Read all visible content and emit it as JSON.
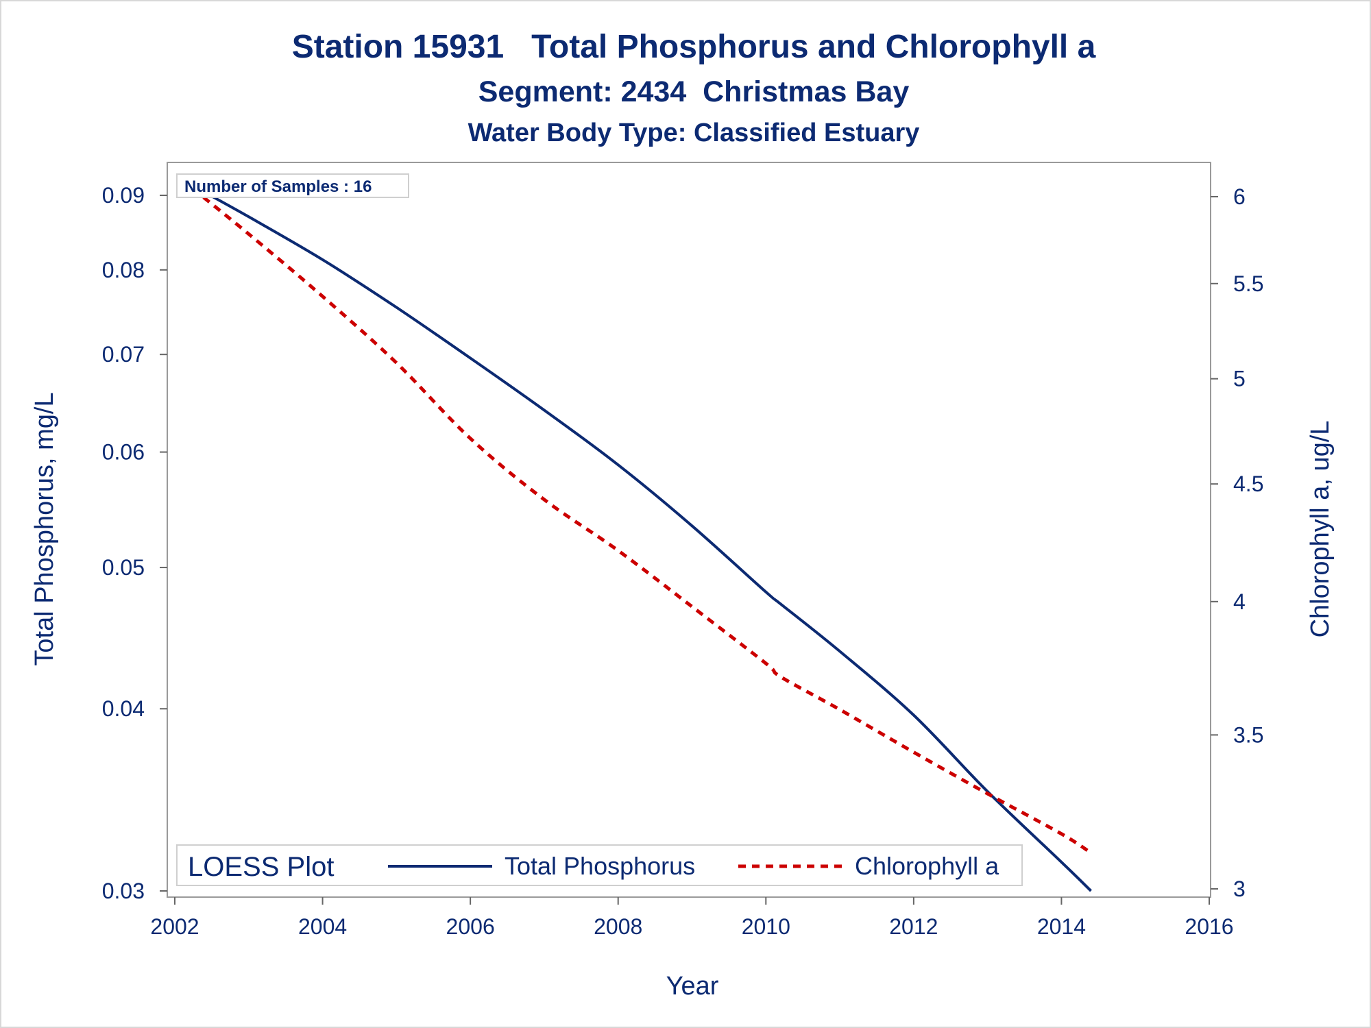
{
  "chart_data": {
    "type": "line",
    "title": "Station 15931   Total Phosphorus and Chlorophyll a",
    "subtitle": "Segment: 2434  Christmas Bay",
    "subtitle2": "Water Body Type: Classified Estuary",
    "xlabel": "Year",
    "ylabel": "Total Phosphorus, mg/L",
    "y2label": "Chlorophyll a, ug/L",
    "xlim": [
      2002,
      2016
    ],
    "ylim": [
      0.03,
      0.09
    ],
    "y2lim": [
      3,
      6
    ],
    "yscale": "log",
    "y2scale": "log",
    "xticks": [
      "2002",
      "2004",
      "2006",
      "2008",
      "2010",
      "2012",
      "2014",
      "2016"
    ],
    "yticks": [
      "0.03",
      "0.04",
      "0.05",
      "0.06",
      "0.07",
      "0.08",
      "0.09"
    ],
    "y2ticks": [
      "3",
      "3.5",
      "4",
      "4.5",
      "5",
      "5.5",
      "6"
    ],
    "annotation": "Number of Samples : 16",
    "legend": {
      "title": "LOESS Plot",
      "placement": "bottom-inside"
    },
    "series": [
      {
        "name": "Total Phosphorus",
        "axis": "left",
        "color": "#0c2a72",
        "style": "solid",
        "x": [
          2002.1,
          2003.0,
          2004.0,
          2005.0,
          2006.0,
          2007.0,
          2008.0,
          2009.0,
          2010.0,
          2010.2,
          2011.0,
          2012.0,
          2013.0,
          2014.0,
          2014.4
        ],
        "y": [
          0.0922,
          0.087,
          0.0813,
          0.0754,
          0.0696,
          0.0641,
          0.0588,
          0.0534,
          0.0481,
          0.0472,
          0.0438,
          0.0396,
          0.0351,
          0.0314,
          0.03
        ]
      },
      {
        "name": "Chlorophyll a",
        "axis": "right",
        "color": "#cc0000",
        "style": "dashed",
        "x": [
          2002.1,
          2003.0,
          2004.0,
          2005.0,
          2006.0,
          2007.0,
          2008.0,
          2009.0,
          2010.0,
          2010.2,
          2011.0,
          2012.0,
          2013.0,
          2014.0,
          2014.4
        ],
        "y": [
          6.1,
          5.78,
          5.43,
          5.08,
          4.71,
          4.43,
          4.21,
          3.98,
          3.76,
          3.71,
          3.59,
          3.44,
          3.3,
          3.17,
          3.11
        ]
      }
    ]
  }
}
